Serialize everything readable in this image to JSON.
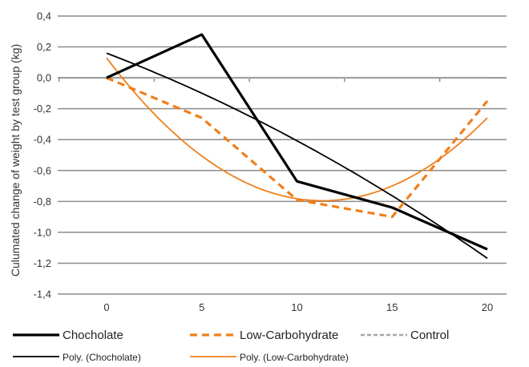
{
  "chart_data": {
    "type": "line",
    "title": "",
    "xlabel": "",
    "ylabel": "Culumated change of weight by test group (kg)",
    "x": [
      0,
      5,
      10,
      15,
      20
    ],
    "x_ticks": [
      "0",
      "5",
      "10",
      "15",
      "20"
    ],
    "ylim": [
      -1.4,
      0.4
    ],
    "y_ticks": [
      "0,4",
      "0,2",
      "0,0",
      "-0,2",
      "-0,4",
      "-0,6",
      "-0,8",
      "-1,0",
      "-1,2",
      "-1,4"
    ],
    "grid": "horizontal",
    "legend_position": "bottom",
    "series": [
      {
        "name": "Chocholate",
        "style": "solid-thick",
        "color": "#000000",
        "values": [
          0.0,
          0.28,
          -0.67,
          -0.84,
          -1.11
        ]
      },
      {
        "name": "Low-Carbohydrate",
        "style": "dashed-thick",
        "color": "#f07f1a",
        "values": [
          0.0,
          -0.26,
          -0.79,
          -0.9,
          -0.15
        ]
      },
      {
        "name": "Control",
        "style": "dashed-gray",
        "color": "#a6a6a6",
        "values": [
          0.0,
          0.0,
          0.0,
          0.0,
          0.0
        ]
      },
      {
        "name": "Poly. (Chocholate)",
        "style": "trend-thin",
        "color": "#000000",
        "values": [
          0.16,
          -0.1,
          -0.41,
          -0.76,
          -1.17
        ]
      },
      {
        "name": "Poly. (Low-Carbohydrate)",
        "style": "trend-thin",
        "color": "#f07f1a",
        "values": [
          0.12,
          -0.49,
          -0.78,
          -0.72,
          -0.25
        ]
      }
    ]
  }
}
